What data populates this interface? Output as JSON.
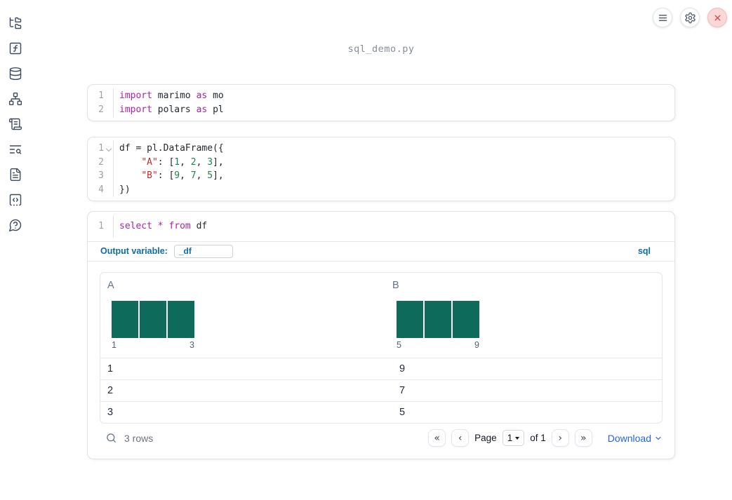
{
  "app": {
    "title": "sql_demo.py"
  },
  "colors": {
    "histogram_bar": "#0e6b5c",
    "sql_accent_blue": "#0c6da3",
    "download_blue": "#2563eb",
    "keyword_purple": "#a626a4",
    "string_red": "#c02c2c",
    "number_green": "#1e8449",
    "shutdown_red": "#d04a4a"
  },
  "sidebar": {
    "icons": [
      "file-explorer",
      "functions",
      "datasources",
      "dependency-graph",
      "logs",
      "table-of-contents",
      "documentation",
      "snippets",
      "help"
    ]
  },
  "topbar": {
    "buttons": [
      "notebook-menu",
      "settings",
      "shutdown"
    ]
  },
  "cells": [
    {
      "type": "python",
      "lines": [
        {
          "num": "1",
          "tokens": [
            [
              "kw",
              "import"
            ],
            [
              "pl",
              " marimo "
            ],
            [
              "kw",
              "as"
            ],
            [
              "pl",
              " mo"
            ]
          ]
        },
        {
          "num": "2",
          "tokens": [
            [
              "kw",
              "import"
            ],
            [
              "pl",
              " polars "
            ],
            [
              "kw",
              "as"
            ],
            [
              "pl",
              " pl"
            ]
          ]
        }
      ]
    },
    {
      "type": "python",
      "lines": [
        {
          "num": "1",
          "fold": true,
          "tokens": [
            [
              "pl",
              "df = pl.DataFrame({"
            ]
          ]
        },
        {
          "num": "2",
          "tokens": [
            [
              "pl",
              "    "
            ],
            [
              "str",
              "\"A\""
            ],
            [
              "pl",
              ": ["
            ],
            [
              "num",
              "1"
            ],
            [
              "pl",
              ", "
            ],
            [
              "num",
              "2"
            ],
            [
              "pl",
              ", "
            ],
            [
              "num",
              "3"
            ],
            [
              "pl",
              "],"
            ]
          ]
        },
        {
          "num": "3",
          "tokens": [
            [
              "pl",
              "    "
            ],
            [
              "str",
              "\"B\""
            ],
            [
              "pl",
              ": ["
            ],
            [
              "num",
              "9"
            ],
            [
              "pl",
              ", "
            ],
            [
              "num",
              "7"
            ],
            [
              "pl",
              ", "
            ],
            [
              "num",
              "5"
            ],
            [
              "pl",
              "],"
            ]
          ]
        },
        {
          "num": "4",
          "tokens": [
            [
              "pl",
              "})"
            ]
          ]
        }
      ]
    },
    {
      "type": "sql",
      "lines": [
        {
          "num": "1",
          "tokens": [
            [
              "kw",
              "select"
            ],
            [
              "pl",
              " "
            ],
            [
              "kw",
              "*"
            ],
            [
              "pl",
              " "
            ],
            [
              "kw",
              "from"
            ],
            [
              "pl",
              " df"
            ]
          ]
        }
      ]
    }
  ],
  "sql_cell": {
    "output_variable_label": "Output variable:",
    "output_variable_value": "_df",
    "language_badge": "sql"
  },
  "table": {
    "columns": [
      {
        "name": "A",
        "hist": {
          "bars": 3,
          "bar_heights": [
            1,
            1,
            1
          ],
          "min_label": "1",
          "max_label": "3"
        }
      },
      {
        "name": "B",
        "hist": {
          "bars": 3,
          "bar_heights": [
            1,
            1,
            1
          ],
          "min_label": "5",
          "max_label": "9"
        }
      }
    ],
    "rows": [
      [
        "1",
        "9"
      ],
      [
        "2",
        "7"
      ],
      [
        "3",
        "5"
      ]
    ],
    "footer": {
      "row_count": "3 rows",
      "page_label": "Page",
      "page_value": "1",
      "of_label": "of 1",
      "download_label": "Download"
    }
  }
}
